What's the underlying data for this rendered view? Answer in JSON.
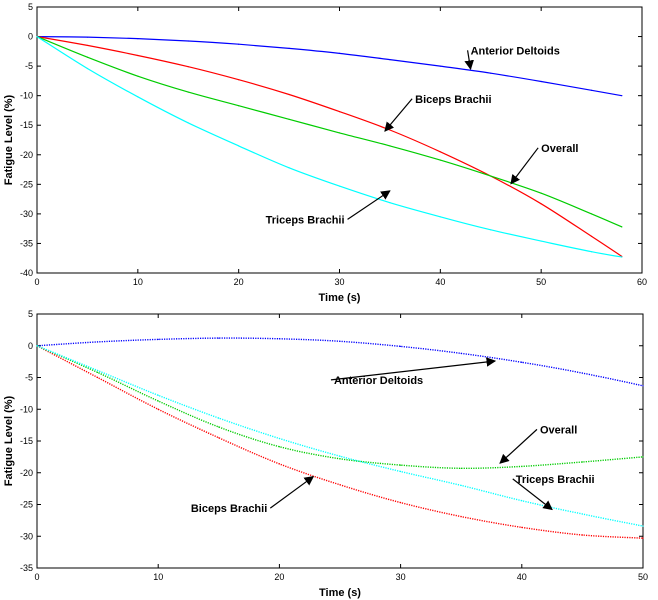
{
  "chart_data": [
    {
      "type": "line",
      "xlabel": "Time (s)",
      "ylabel": "Fatigue Level (%)",
      "xlim": [
        0,
        60
      ],
      "ylim": [
        -40,
        5
      ],
      "xticks": [
        0,
        10,
        20,
        30,
        40,
        50,
        60
      ],
      "yticks": [
        5,
        0,
        -5,
        -10,
        -15,
        -20,
        -25,
        -30,
        -35,
        -40
      ],
      "grid": false,
      "x": [
        0,
        5,
        10,
        15,
        20,
        25,
        30,
        35,
        40,
        45,
        50,
        55,
        58
      ],
      "series": [
        {
          "name": "Anterior Deltoids",
          "color": "#0000ff",
          "style": "solid",
          "values": [
            0,
            -0.1,
            -0.35,
            -0.75,
            -1.3,
            -2.0,
            -2.85,
            -3.9,
            -5.0,
            -6.2,
            -7.6,
            -9.1,
            -10.0
          ]
        },
        {
          "name": "Biceps Brachii",
          "color": "#ff0000",
          "style": "solid",
          "values": [
            0,
            -1.5,
            -3.2,
            -5.1,
            -7.3,
            -9.8,
            -12.7,
            -15.8,
            -19.5,
            -23.6,
            -28.3,
            -33.8,
            -37.2
          ]
        },
        {
          "name": "Overall",
          "color": "#00cc00",
          "style": "solid",
          "values": [
            0,
            -3.5,
            -6.7,
            -9.4,
            -11.7,
            -14.0,
            -16.3,
            -18.5,
            -20.9,
            -23.6,
            -26.5,
            -30.0,
            -32.2
          ]
        },
        {
          "name": "Triceps Brachii",
          "color": "#00ffff",
          "style": "solid",
          "values": [
            0,
            -5.4,
            -10.2,
            -14.6,
            -18.5,
            -22.2,
            -25.3,
            -28.1,
            -30.5,
            -32.7,
            -34.6,
            -36.4,
            -37.3
          ]
        }
      ],
      "annotations": [
        {
          "text": "Anterior Deltoids",
          "x": 43,
          "y": -3.0,
          "arrow_to": [
            43,
            -5.5
          ],
          "anchor": "start"
        },
        {
          "text": "Biceps Brachii",
          "x": 37.5,
          "y": -11.2,
          "arrow_to": [
            34.5,
            -16.0
          ],
          "anchor": "start"
        },
        {
          "text": "Overall",
          "x": 50,
          "y": -19.5,
          "arrow_to": [
            47,
            -24.9
          ],
          "anchor": "start"
        },
        {
          "text": "Triceps Brachii",
          "x": 30.5,
          "y": -31.6,
          "arrow_to": [
            35,
            -26.1
          ],
          "anchor": "end"
        }
      ]
    },
    {
      "type": "line",
      "xlabel": "Time (s)",
      "ylabel": "Fatigue Level (%)",
      "xlim": [
        0,
        50
      ],
      "ylim": [
        -35,
        5
      ],
      "xticks": [
        0,
        10,
        20,
        30,
        40,
        50
      ],
      "yticks": [
        5,
        0,
        -5,
        -10,
        -15,
        -20,
        -25,
        -30,
        -35
      ],
      "grid": false,
      "x": [
        0,
        5,
        10,
        15,
        20,
        25,
        30,
        35,
        40,
        45,
        50
      ],
      "series": [
        {
          "name": "Anterior Deltoids",
          "color": "#0000ff",
          "style": "dotted",
          "values": [
            0,
            0.6,
            1.0,
            1.2,
            1.1,
            0.7,
            -0.1,
            -1.2,
            -2.6,
            -4.3,
            -6.3
          ]
        },
        {
          "name": "Biceps Brachii",
          "color": "#ff0000",
          "style": "dotted",
          "values": [
            0,
            -5.0,
            -10.0,
            -14.5,
            -18.6,
            -21.9,
            -24.7,
            -26.9,
            -28.6,
            -29.8,
            -30.3
          ]
        },
        {
          "name": "Overall",
          "color": "#00cc00",
          "style": "dotted",
          "values": [
            0,
            -4.2,
            -8.7,
            -12.8,
            -15.9,
            -17.8,
            -18.8,
            -19.3,
            -19.0,
            -18.3,
            -17.5
          ]
        },
        {
          "name": "Triceps Brachii",
          "color": "#00ffff",
          "style": "dotted",
          "values": [
            0,
            -3.9,
            -7.8,
            -11.4,
            -14.6,
            -17.4,
            -19.8,
            -22.0,
            -24.4,
            -26.5,
            -28.4
          ]
        }
      ],
      "annotations": [
        {
          "text": "Anterior Deltoids",
          "x": 24.5,
          "y": -6.0,
          "arrow_to": [
            37.8,
            -2.4
          ],
          "anchor": "start"
        },
        {
          "text": "Overall",
          "x": 41.5,
          "y": -13.8,
          "arrow_to": [
            38.2,
            -18.5
          ],
          "anchor": "start"
        },
        {
          "text": "Triceps Brachii",
          "x": 39.5,
          "y": -21.6,
          "arrow_to": [
            42.5,
            -25.8
          ],
          "anchor": "start"
        },
        {
          "text": "Biceps Brachii",
          "x": 19.0,
          "y": -26.2,
          "arrow_to": [
            22.8,
            -20.6
          ],
          "anchor": "end"
        }
      ]
    }
  ]
}
